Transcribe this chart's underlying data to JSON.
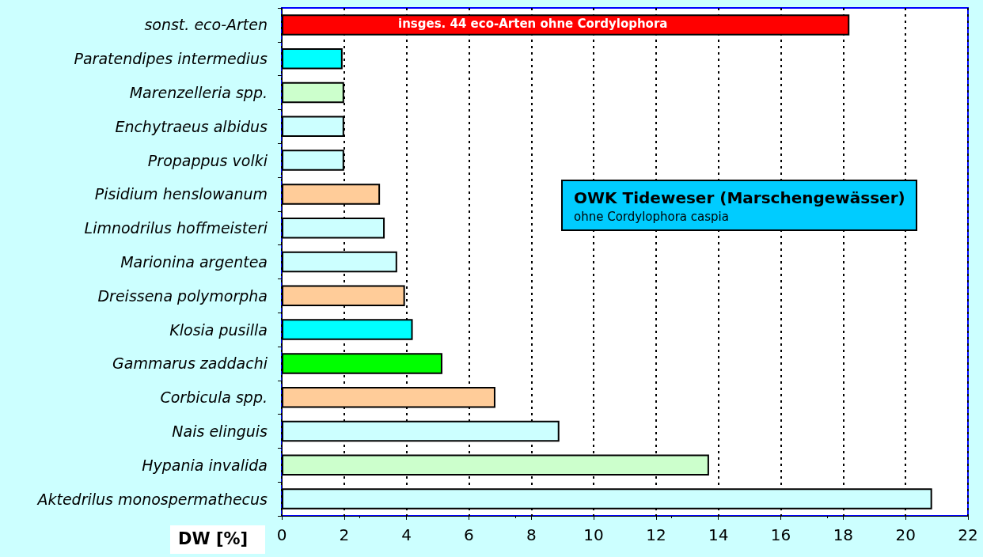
{
  "chart_data": {
    "type": "bar",
    "orientation": "horizontal",
    "title": "OWK Tideweser (Marschengewässer)",
    "subtitle": "ohne Cordylophora caspia",
    "xlabel": "DW [%]",
    "categories": [
      "sonst. eco-Arten",
      "Paratendipes intermedius",
      "Marenzelleria spp.",
      "Enchytraeus albidus",
      "Propappus volki",
      "Pisidium henslowanum",
      "Limnodrilus hoffmeisteri",
      "Marionina argentea",
      "Dreissena polymorpha",
      "Klosia pusilla",
      "Gammarus zaddachi",
      "Corbicula spp.",
      "Nais elinguis",
      "Hypania invalida",
      "Aktedrilus monospermathecus"
    ],
    "values": [
      18.2,
      1.95,
      2.0,
      2.0,
      2.0,
      3.15,
      3.3,
      3.7,
      3.95,
      4.2,
      5.15,
      6.85,
      8.9,
      13.7,
      20.85
    ],
    "colors": [
      "#ff0000",
      "#00ffff",
      "#ccffcc",
      "#ccffff",
      "#ccffff",
      "#ffcc99",
      "#ccffff",
      "#ccffff",
      "#ffcc99",
      "#00ffff",
      "#00ff00",
      "#ffcc99",
      "#ccffff",
      "#ccffcc",
      "#ccffff"
    ],
    "xlim": [
      0,
      22
    ],
    "xticks": [
      0,
      2,
      4,
      6,
      8,
      10,
      12,
      14,
      16,
      18,
      20,
      22
    ],
    "grid": "x",
    "annotations": [
      "insges. 44 eco-Arten ohne Cordylophora"
    ]
  }
}
